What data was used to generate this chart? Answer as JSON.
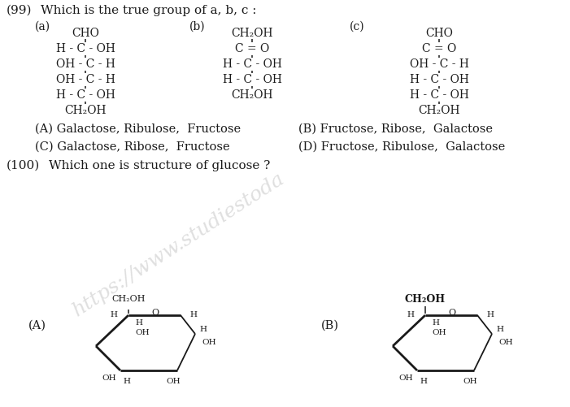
{
  "bg_color": "#ffffff",
  "q99_num": "(99)",
  "q99_text": "Which is the true group of a, b, c :",
  "q100_num": "(100)",
  "q100_text": "Which one is structure of glucose ?",
  "opt_A": "(A) Galactose, Ribulose,  Fructose",
  "opt_B": "(B) Fructose, Ribose,  Galactose",
  "opt_C": "(C) Galactose, Ribose,  Fructose",
  "opt_D": "(D) Fructose, Ribulose,  Galactose",
  "watermark": "https://www.studiestoda",
  "text_color": "#1a1a1a",
  "font_size_q": 11,
  "font_size_opt": 10.5,
  "font_size_struct": 10,
  "font_size_ring": 8
}
